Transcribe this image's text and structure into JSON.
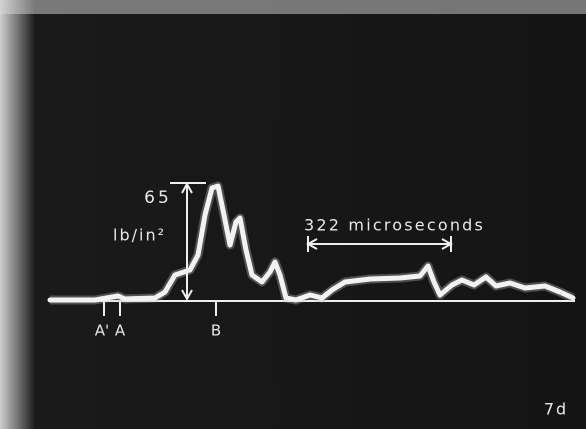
{
  "annotations": {
    "pressure_value": "65",
    "pressure_unit": "lb/in²",
    "duration": "322 microseconds",
    "marker_a_prime": "A'",
    "marker_a": "A",
    "marker_b": "B"
  },
  "figure_label": "7d"
}
